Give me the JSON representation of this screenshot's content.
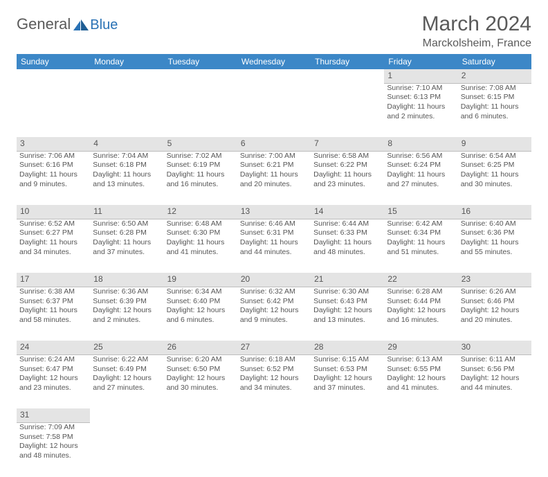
{
  "logo": {
    "text1": "General",
    "text2": "Blue"
  },
  "title": "March 2024",
  "location": "Marckolsheim, France",
  "colors": {
    "header_bg": "#3c87c7",
    "header_fg": "#ffffff",
    "daynum_bg": "#e4e4e4",
    "text": "#555555",
    "logo_gray": "#5a5a5a",
    "logo_blue": "#2a72b5"
  },
  "weekdays": [
    "Sunday",
    "Monday",
    "Tuesday",
    "Wednesday",
    "Thursday",
    "Friday",
    "Saturday"
  ],
  "weeks": [
    [
      null,
      null,
      null,
      null,
      null,
      {
        "n": "1",
        "sr": "Sunrise: 7:10 AM",
        "ss": "Sunset: 6:13 PM",
        "d1": "Daylight: 11 hours",
        "d2": "and 2 minutes."
      },
      {
        "n": "2",
        "sr": "Sunrise: 7:08 AM",
        "ss": "Sunset: 6:15 PM",
        "d1": "Daylight: 11 hours",
        "d2": "and 6 minutes."
      }
    ],
    [
      {
        "n": "3",
        "sr": "Sunrise: 7:06 AM",
        "ss": "Sunset: 6:16 PM",
        "d1": "Daylight: 11 hours",
        "d2": "and 9 minutes."
      },
      {
        "n": "4",
        "sr": "Sunrise: 7:04 AM",
        "ss": "Sunset: 6:18 PM",
        "d1": "Daylight: 11 hours",
        "d2": "and 13 minutes."
      },
      {
        "n": "5",
        "sr": "Sunrise: 7:02 AM",
        "ss": "Sunset: 6:19 PM",
        "d1": "Daylight: 11 hours",
        "d2": "and 16 minutes."
      },
      {
        "n": "6",
        "sr": "Sunrise: 7:00 AM",
        "ss": "Sunset: 6:21 PM",
        "d1": "Daylight: 11 hours",
        "d2": "and 20 minutes."
      },
      {
        "n": "7",
        "sr": "Sunrise: 6:58 AM",
        "ss": "Sunset: 6:22 PM",
        "d1": "Daylight: 11 hours",
        "d2": "and 23 minutes."
      },
      {
        "n": "8",
        "sr": "Sunrise: 6:56 AM",
        "ss": "Sunset: 6:24 PM",
        "d1": "Daylight: 11 hours",
        "d2": "and 27 minutes."
      },
      {
        "n": "9",
        "sr": "Sunrise: 6:54 AM",
        "ss": "Sunset: 6:25 PM",
        "d1": "Daylight: 11 hours",
        "d2": "and 30 minutes."
      }
    ],
    [
      {
        "n": "10",
        "sr": "Sunrise: 6:52 AM",
        "ss": "Sunset: 6:27 PM",
        "d1": "Daylight: 11 hours",
        "d2": "and 34 minutes."
      },
      {
        "n": "11",
        "sr": "Sunrise: 6:50 AM",
        "ss": "Sunset: 6:28 PM",
        "d1": "Daylight: 11 hours",
        "d2": "and 37 minutes."
      },
      {
        "n": "12",
        "sr": "Sunrise: 6:48 AM",
        "ss": "Sunset: 6:30 PM",
        "d1": "Daylight: 11 hours",
        "d2": "and 41 minutes."
      },
      {
        "n": "13",
        "sr": "Sunrise: 6:46 AM",
        "ss": "Sunset: 6:31 PM",
        "d1": "Daylight: 11 hours",
        "d2": "and 44 minutes."
      },
      {
        "n": "14",
        "sr": "Sunrise: 6:44 AM",
        "ss": "Sunset: 6:33 PM",
        "d1": "Daylight: 11 hours",
        "d2": "and 48 minutes."
      },
      {
        "n": "15",
        "sr": "Sunrise: 6:42 AM",
        "ss": "Sunset: 6:34 PM",
        "d1": "Daylight: 11 hours",
        "d2": "and 51 minutes."
      },
      {
        "n": "16",
        "sr": "Sunrise: 6:40 AM",
        "ss": "Sunset: 6:36 PM",
        "d1": "Daylight: 11 hours",
        "d2": "and 55 minutes."
      }
    ],
    [
      {
        "n": "17",
        "sr": "Sunrise: 6:38 AM",
        "ss": "Sunset: 6:37 PM",
        "d1": "Daylight: 11 hours",
        "d2": "and 58 minutes."
      },
      {
        "n": "18",
        "sr": "Sunrise: 6:36 AM",
        "ss": "Sunset: 6:39 PM",
        "d1": "Daylight: 12 hours",
        "d2": "and 2 minutes."
      },
      {
        "n": "19",
        "sr": "Sunrise: 6:34 AM",
        "ss": "Sunset: 6:40 PM",
        "d1": "Daylight: 12 hours",
        "d2": "and 6 minutes."
      },
      {
        "n": "20",
        "sr": "Sunrise: 6:32 AM",
        "ss": "Sunset: 6:42 PM",
        "d1": "Daylight: 12 hours",
        "d2": "and 9 minutes."
      },
      {
        "n": "21",
        "sr": "Sunrise: 6:30 AM",
        "ss": "Sunset: 6:43 PM",
        "d1": "Daylight: 12 hours",
        "d2": "and 13 minutes."
      },
      {
        "n": "22",
        "sr": "Sunrise: 6:28 AM",
        "ss": "Sunset: 6:44 PM",
        "d1": "Daylight: 12 hours",
        "d2": "and 16 minutes."
      },
      {
        "n": "23",
        "sr": "Sunrise: 6:26 AM",
        "ss": "Sunset: 6:46 PM",
        "d1": "Daylight: 12 hours",
        "d2": "and 20 minutes."
      }
    ],
    [
      {
        "n": "24",
        "sr": "Sunrise: 6:24 AM",
        "ss": "Sunset: 6:47 PM",
        "d1": "Daylight: 12 hours",
        "d2": "and 23 minutes."
      },
      {
        "n": "25",
        "sr": "Sunrise: 6:22 AM",
        "ss": "Sunset: 6:49 PM",
        "d1": "Daylight: 12 hours",
        "d2": "and 27 minutes."
      },
      {
        "n": "26",
        "sr": "Sunrise: 6:20 AM",
        "ss": "Sunset: 6:50 PM",
        "d1": "Daylight: 12 hours",
        "d2": "and 30 minutes."
      },
      {
        "n": "27",
        "sr": "Sunrise: 6:18 AM",
        "ss": "Sunset: 6:52 PM",
        "d1": "Daylight: 12 hours",
        "d2": "and 34 minutes."
      },
      {
        "n": "28",
        "sr": "Sunrise: 6:15 AM",
        "ss": "Sunset: 6:53 PM",
        "d1": "Daylight: 12 hours",
        "d2": "and 37 minutes."
      },
      {
        "n": "29",
        "sr": "Sunrise: 6:13 AM",
        "ss": "Sunset: 6:55 PM",
        "d1": "Daylight: 12 hours",
        "d2": "and 41 minutes."
      },
      {
        "n": "30",
        "sr": "Sunrise: 6:11 AM",
        "ss": "Sunset: 6:56 PM",
        "d1": "Daylight: 12 hours",
        "d2": "and 44 minutes."
      }
    ],
    [
      {
        "n": "31",
        "sr": "Sunrise: 7:09 AM",
        "ss": "Sunset: 7:58 PM",
        "d1": "Daylight: 12 hours",
        "d2": "and 48 minutes."
      },
      null,
      null,
      null,
      null,
      null,
      null
    ]
  ]
}
